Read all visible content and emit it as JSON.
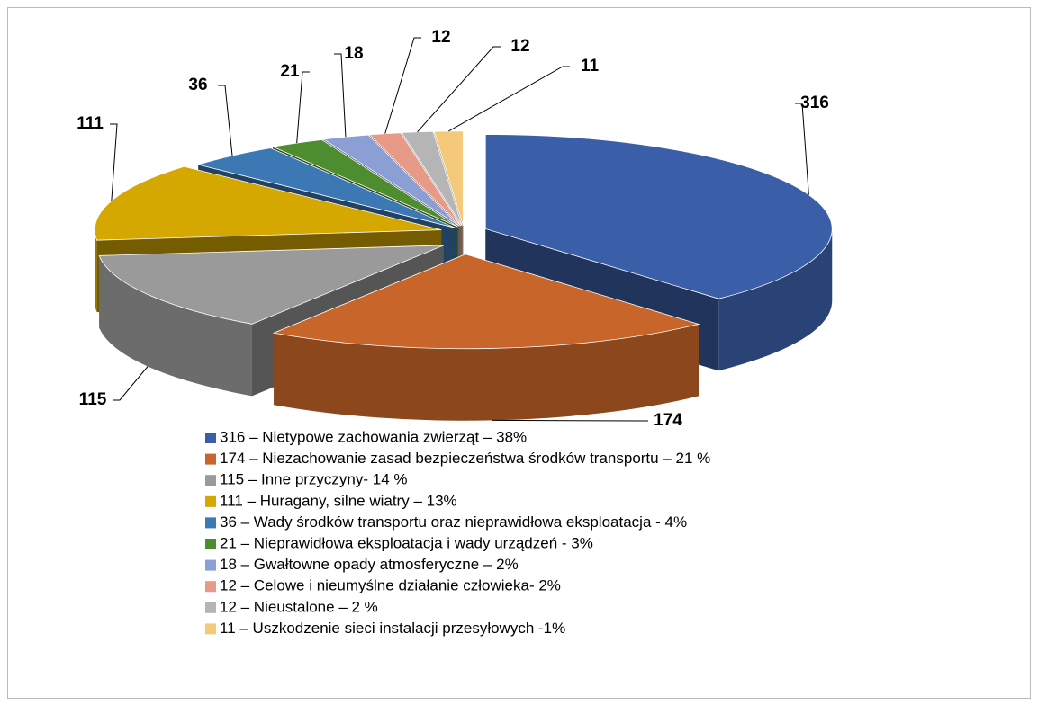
{
  "chart_data": {
    "type": "pie3d",
    "categories": [
      "316 – Nietypowe zachowania zwierząt – 38%",
      "174 – Niezachowanie zasad bezpieczeństwa środków transportu – 21 %",
      "115 – Inne przyczyny-  14 %",
      "111 – Huragany, silne wiatry – 13%",
      "36 – Wady środków transportu oraz nieprawidłowa eksploatacja - 4%",
      "21 – Nieprawidłowa eksploatacja i wady urządzeń - 3%",
      "18 – Gwałtowne opady atmosferyczne – 2%",
      "12 – Celowe i nieumyślne działanie człowieka- 2%",
      "12 – Nieustalone – 2 %",
      "11 – Uszkodzenie sieci instalacji przesyłowych -1%"
    ],
    "values": [
      316,
      174,
      115,
      111,
      36,
      21,
      18,
      12,
      12,
      11
    ],
    "colors": [
      "#3a5fa8",
      "#c8652a",
      "#9a9a9a",
      "#d4a800",
      "#3c78b4",
      "#4e8c30",
      "#8c9fd4",
      "#e89a88",
      "#b5b5b5",
      "#f5c97a"
    ]
  }
}
